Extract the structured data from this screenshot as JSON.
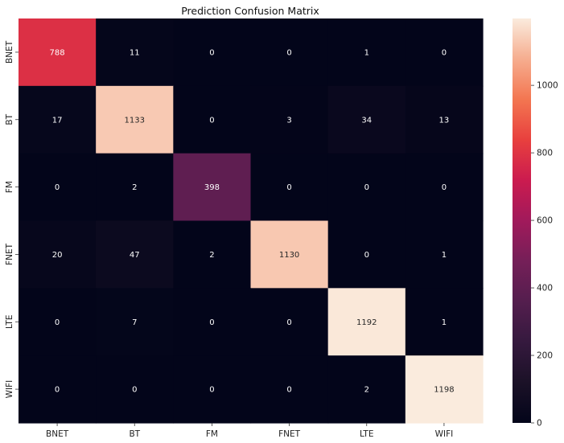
{
  "chart_data": {
    "type": "heatmap",
    "title": "Prediction Confusion Matrix",
    "x_categories": [
      "BNET",
      "BT",
      "FM",
      "FNET",
      "LTE",
      "WIFI"
    ],
    "y_categories": [
      "BNET",
      "BT",
      "FM",
      "FNET",
      "LTE",
      "WIFI"
    ],
    "matrix": [
      [
        788,
        11,
        0,
        0,
        1,
        0
      ],
      [
        17,
        1133,
        0,
        3,
        34,
        13
      ],
      [
        0,
        2,
        398,
        0,
        0,
        0
      ],
      [
        20,
        47,
        2,
        1130,
        0,
        1
      ],
      [
        0,
        7,
        0,
        0,
        1192,
        1
      ],
      [
        0,
        0,
        0,
        0,
        2,
        1198
      ]
    ],
    "colorbar": {
      "min": 0,
      "max": 1198,
      "ticks": [
        0,
        200,
        400,
        600,
        800,
        1000
      ],
      "colormap": "rocket"
    },
    "xlabel": "",
    "ylabel": ""
  }
}
